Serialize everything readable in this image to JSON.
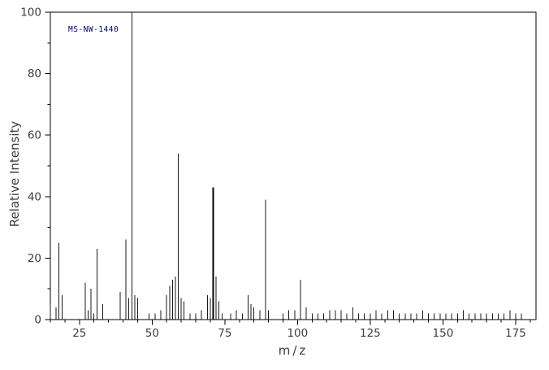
{
  "annotation": "MS-NW-1440",
  "chart_data": {
    "type": "bar",
    "title": "",
    "xlabel": "m/z",
    "ylabel": "Relative Intensity",
    "xlim": [
      15,
      182
    ],
    "ylim": [
      0,
      100
    ],
    "x_ticks": [
      25,
      50,
      75,
      100,
      125,
      150,
      175
    ],
    "x_minor_step": 5,
    "y_ticks": [
      0,
      20,
      40,
      60,
      80,
      100
    ],
    "y_minor_step": 10,
    "grid": false,
    "legend": false,
    "frame_color": "#000000",
    "peak_color": "#1a1a1a",
    "bold_peaks": [
      71
    ],
    "peaks": [
      [
        15,
        5
      ],
      [
        17,
        4
      ],
      [
        18,
        25
      ],
      [
        19,
        8
      ],
      [
        27,
        12
      ],
      [
        28,
        3
      ],
      [
        29,
        10
      ],
      [
        30,
        2
      ],
      [
        31,
        23
      ],
      [
        33,
        5
      ],
      [
        39,
        9
      ],
      [
        41,
        26
      ],
      [
        42,
        7
      ],
      [
        43,
        100
      ],
      [
        44,
        8
      ],
      [
        45,
        7
      ],
      [
        49,
        2
      ],
      [
        51,
        2
      ],
      [
        53,
        3
      ],
      [
        55,
        8
      ],
      [
        56,
        11
      ],
      [
        57,
        13
      ],
      [
        58,
        14
      ],
      [
        59,
        54
      ],
      [
        60,
        7
      ],
      [
        61,
        6
      ],
      [
        63,
        2
      ],
      [
        65,
        2
      ],
      [
        67,
        3
      ],
      [
        69,
        8
      ],
      [
        70,
        7
      ],
      [
        71,
        43
      ],
      [
        72,
        14
      ],
      [
        73,
        6
      ],
      [
        74,
        2
      ],
      [
        77,
        2
      ],
      [
        79,
        3
      ],
      [
        81,
        2
      ],
      [
        83,
        8
      ],
      [
        84,
        5
      ],
      [
        85,
        4
      ],
      [
        87,
        3
      ],
      [
        89,
        39
      ],
      [
        90,
        3
      ],
      [
        95,
        2
      ],
      [
        97,
        3
      ],
      [
        99,
        3
      ],
      [
        101,
        13
      ],
      [
        103,
        4
      ],
      [
        105,
        2
      ],
      [
        107,
        2
      ],
      [
        109,
        2
      ],
      [
        111,
        3
      ],
      [
        113,
        3
      ],
      [
        115,
        3
      ],
      [
        117,
        2
      ],
      [
        119,
        4
      ],
      [
        121,
        2
      ],
      [
        123,
        2
      ],
      [
        125,
        2
      ],
      [
        127,
        3
      ],
      [
        129,
        2
      ],
      [
        131,
        3
      ],
      [
        133,
        3
      ],
      [
        135,
        2
      ],
      [
        137,
        2
      ],
      [
        139,
        2
      ],
      [
        141,
        2
      ],
      [
        143,
        3
      ],
      [
        145,
        2
      ],
      [
        147,
        2
      ],
      [
        149,
        2
      ],
      [
        151,
        2
      ],
      [
        153,
        2
      ],
      [
        155,
        2
      ],
      [
        157,
        3
      ],
      [
        159,
        2
      ],
      [
        161,
        2
      ],
      [
        163,
        2
      ],
      [
        165,
        2
      ],
      [
        167,
        2
      ],
      [
        169,
        2
      ],
      [
        171,
        2
      ],
      [
        173,
        3
      ],
      [
        175,
        2
      ],
      [
        177,
        2
      ]
    ]
  }
}
